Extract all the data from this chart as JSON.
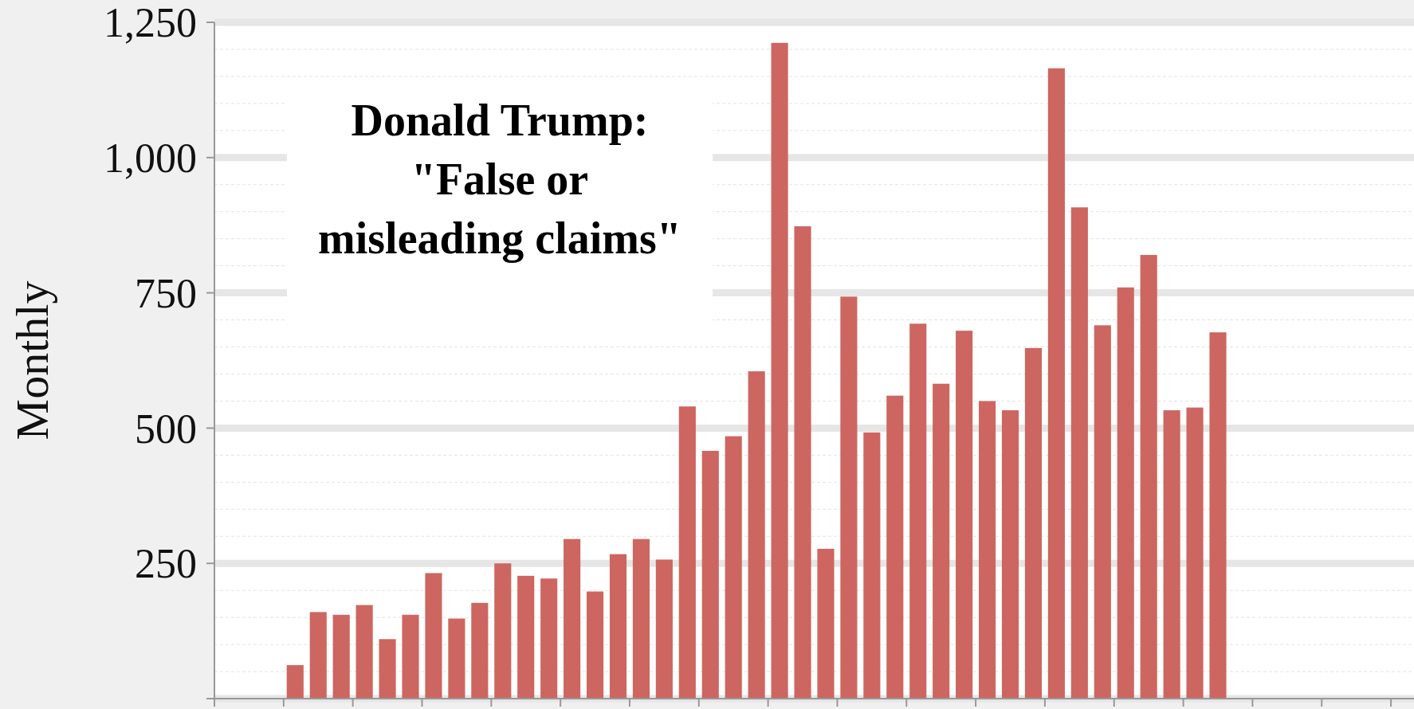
{
  "chart_data": {
    "type": "bar",
    "title": "Donald Trump:\n\"False or\nmisleading claims\"",
    "ylabel": "Monthly",
    "categories": [
      null,
      null,
      null,
      null,
      null,
      null,
      null,
      null,
      null,
      null,
      null,
      null,
      null,
      null,
      null,
      null,
      null,
      null,
      null,
      null,
      null,
      null,
      null,
      null,
      null,
      null,
      null,
      null,
      null,
      null,
      null,
      null,
      null,
      null,
      null,
      null,
      null,
      null,
      null,
      null,
      null,
      null,
      null,
      null,
      null,
      null,
      null,
      null,
      null,
      null,
      null,
      null
    ],
    "values": [
      null,
      null,
      null,
      62,
      160,
      155,
      173,
      110,
      155,
      232,
      148,
      177,
      250,
      227,
      222,
      295,
      198,
      267,
      295,
      257,
      540,
      458,
      485,
      605,
      1212,
      873,
      277,
      743,
      492,
      560,
      693,
      582,
      680,
      550,
      533,
      648,
      1165,
      908,
      690,
      760,
      820,
      533,
      538,
      677,
      null,
      null,
      null,
      null,
      null,
      null,
      null,
      null
    ],
    "color": "#cd6660",
    "ylim": [
      0,
      1250
    ],
    "yticks": [
      {
        "value": 0,
        "label": null
      },
      250,
      500,
      750,
      {
        "value": 1000,
        "label": "1,000"
      },
      {
        "value": 1250,
        "label": "1,250"
      }
    ],
    "grid": "y"
  }
}
